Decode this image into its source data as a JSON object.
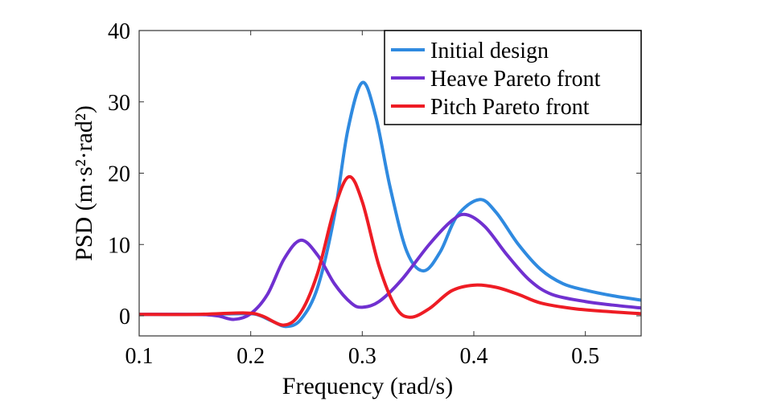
{
  "chart_data": {
    "type": "line",
    "title": "",
    "xlabel": "Frequency (rad/s)",
    "ylabel": "PSD (m·s²·rad²)",
    "xlim": [
      0.1,
      0.55
    ],
    "ylim": [
      -2.8,
      40
    ],
    "xticks": [
      0.1,
      0.2,
      0.3,
      0.4,
      0.5
    ],
    "xtick_labels": [
      "0.1",
      "0.2",
      "0.3",
      "0.4",
      "0.5"
    ],
    "yticks": [
      0,
      10,
      20,
      30,
      40
    ],
    "ytick_labels": [
      "0",
      "10",
      "20",
      "30",
      "40"
    ],
    "grid": false,
    "legend_position": "top-right",
    "series": [
      {
        "name": "Initial design",
        "color": "#2f8ae0",
        "x": [
          0.1,
          0.15,
          0.19,
          0.205,
          0.22,
          0.232,
          0.245,
          0.26,
          0.275,
          0.287,
          0.3,
          0.312,
          0.325,
          0.34,
          0.355,
          0.37,
          0.385,
          0.405,
          0.42,
          0.44,
          0.46,
          0.48,
          0.5,
          0.525,
          0.55
        ],
        "y": [
          0.2,
          0.2,
          0.3,
          0.2,
          -0.8,
          -1.5,
          -0.5,
          4,
          14,
          26,
          32.7,
          28,
          18,
          9,
          6.3,
          9,
          14,
          16.3,
          14.5,
          10,
          6.5,
          4.5,
          3.6,
          2.8,
          2.2
        ]
      },
      {
        "name": "Heave Pareto front",
        "color": "#7030d0",
        "x": [
          0.1,
          0.15,
          0.17,
          0.185,
          0.2,
          0.215,
          0.23,
          0.245,
          0.26,
          0.275,
          0.29,
          0.3,
          0.315,
          0.335,
          0.36,
          0.38,
          0.393,
          0.41,
          0.43,
          0.45,
          0.47,
          0.5,
          0.525,
          0.55
        ],
        "y": [
          0.2,
          0.2,
          0,
          -0.5,
          0.3,
          3,
          8,
          10.6,
          8.5,
          4.5,
          1.8,
          1.2,
          2,
          5,
          10,
          13.3,
          14.2,
          12.5,
          8.5,
          5,
          3,
          2,
          1.5,
          1.1
        ]
      },
      {
        "name": "Pitch Pareto front",
        "color": "#ee1c24",
        "x": [
          0.1,
          0.15,
          0.195,
          0.21,
          0.23,
          0.245,
          0.26,
          0.275,
          0.288,
          0.3,
          0.315,
          0.33,
          0.343,
          0.36,
          0.38,
          0.4,
          0.42,
          0.44,
          0.46,
          0.49,
          0.52,
          0.55
        ],
        "y": [
          0.2,
          0.2,
          0.4,
          0,
          -1.3,
          0.5,
          6,
          15,
          19.5,
          16,
          7,
          1.2,
          -0.2,
          1,
          3.5,
          4.3,
          4,
          3,
          1.8,
          1,
          0.6,
          0.3
        ]
      }
    ]
  }
}
